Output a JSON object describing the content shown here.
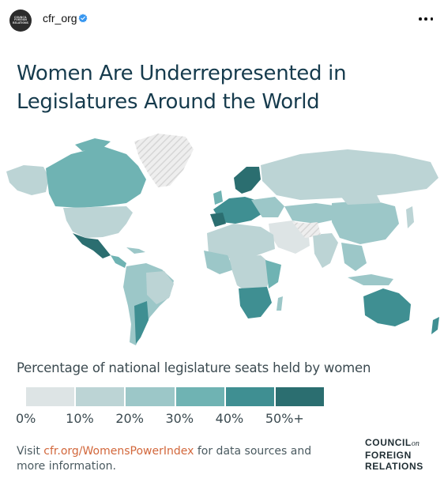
{
  "header": {
    "username": "cfr_org",
    "avatar_text": "COUNCIL\nFOREIGN\nRELATIONS"
  },
  "graphic": {
    "title_line1": "Women Are Underrepresented in",
    "title_line2": "Legislatures Around the World"
  },
  "chart_data": {
    "type": "choropleth",
    "legend_title": "Percentage of national legislature seats held by women",
    "bins": [
      {
        "label": "0%",
        "color": "#dde4e5"
      },
      {
        "label": "10%",
        "color": "#bcd4d5"
      },
      {
        "label": "20%",
        "color": "#9cc7c8"
      },
      {
        "label": "30%",
        "color": "#6fb3b3"
      },
      {
        "label": "40%",
        "color": "#3f8f92"
      },
      {
        "label": "50%+",
        "color": "#2b6e70"
      }
    ],
    "no_data_color": "#e6e6e6"
  },
  "footer": {
    "visit": "Visit ",
    "link": "cfr.org/WomensPowerIndex",
    "rest": " for data sources and more information.",
    "logo_line1": "COUNCIL",
    "logo_on": "on",
    "logo_line2": "FOREIGN",
    "logo_line3": "RELATIONS"
  }
}
